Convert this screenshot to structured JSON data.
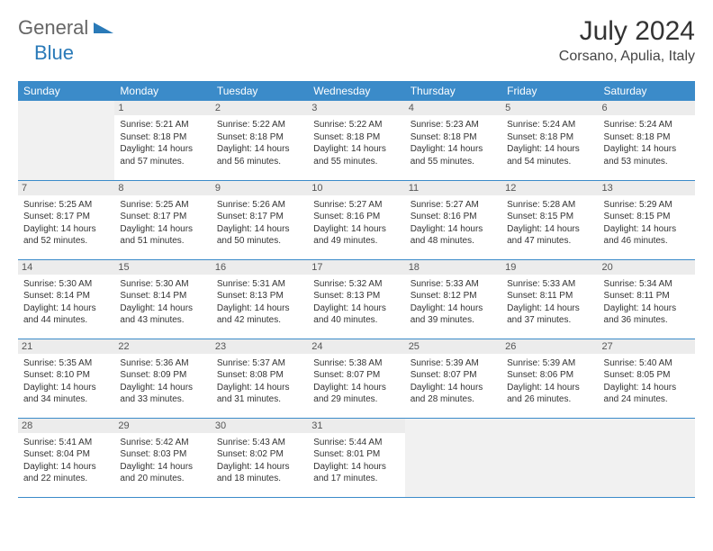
{
  "logo": {
    "text1": "General",
    "text2": "Blue"
  },
  "title": "July 2024",
  "location": "Corsano, Apulia, Italy",
  "weekdays": [
    "Sunday",
    "Monday",
    "Tuesday",
    "Wednesday",
    "Thursday",
    "Friday",
    "Saturday"
  ],
  "colors": {
    "header_bg": "#3b8bc9",
    "header_text": "#ffffff",
    "daynum_bg": "#ececec",
    "empty_bg": "#f1f1f1",
    "border": "#3b8bc9",
    "logo_blue": "#2a7ab8"
  },
  "grid_start_offset": 1,
  "days": [
    {
      "n": 1,
      "sunrise": "5:21 AM",
      "sunset": "8:18 PM",
      "daylight": "14 hours and 57 minutes."
    },
    {
      "n": 2,
      "sunrise": "5:22 AM",
      "sunset": "8:18 PM",
      "daylight": "14 hours and 56 minutes."
    },
    {
      "n": 3,
      "sunrise": "5:22 AM",
      "sunset": "8:18 PM",
      "daylight": "14 hours and 55 minutes."
    },
    {
      "n": 4,
      "sunrise": "5:23 AM",
      "sunset": "8:18 PM",
      "daylight": "14 hours and 55 minutes."
    },
    {
      "n": 5,
      "sunrise": "5:24 AM",
      "sunset": "8:18 PM",
      "daylight": "14 hours and 54 minutes."
    },
    {
      "n": 6,
      "sunrise": "5:24 AM",
      "sunset": "8:18 PM",
      "daylight": "14 hours and 53 minutes."
    },
    {
      "n": 7,
      "sunrise": "5:25 AM",
      "sunset": "8:17 PM",
      "daylight": "14 hours and 52 minutes."
    },
    {
      "n": 8,
      "sunrise": "5:25 AM",
      "sunset": "8:17 PM",
      "daylight": "14 hours and 51 minutes."
    },
    {
      "n": 9,
      "sunrise": "5:26 AM",
      "sunset": "8:17 PM",
      "daylight": "14 hours and 50 minutes."
    },
    {
      "n": 10,
      "sunrise": "5:27 AM",
      "sunset": "8:16 PM",
      "daylight": "14 hours and 49 minutes."
    },
    {
      "n": 11,
      "sunrise": "5:27 AM",
      "sunset": "8:16 PM",
      "daylight": "14 hours and 48 minutes."
    },
    {
      "n": 12,
      "sunrise": "5:28 AM",
      "sunset": "8:15 PM",
      "daylight": "14 hours and 47 minutes."
    },
    {
      "n": 13,
      "sunrise": "5:29 AM",
      "sunset": "8:15 PM",
      "daylight": "14 hours and 46 minutes."
    },
    {
      "n": 14,
      "sunrise": "5:30 AM",
      "sunset": "8:14 PM",
      "daylight": "14 hours and 44 minutes."
    },
    {
      "n": 15,
      "sunrise": "5:30 AM",
      "sunset": "8:14 PM",
      "daylight": "14 hours and 43 minutes."
    },
    {
      "n": 16,
      "sunrise": "5:31 AM",
      "sunset": "8:13 PM",
      "daylight": "14 hours and 42 minutes."
    },
    {
      "n": 17,
      "sunrise": "5:32 AM",
      "sunset": "8:13 PM",
      "daylight": "14 hours and 40 minutes."
    },
    {
      "n": 18,
      "sunrise": "5:33 AM",
      "sunset": "8:12 PM",
      "daylight": "14 hours and 39 minutes."
    },
    {
      "n": 19,
      "sunrise": "5:33 AM",
      "sunset": "8:11 PM",
      "daylight": "14 hours and 37 minutes."
    },
    {
      "n": 20,
      "sunrise": "5:34 AM",
      "sunset": "8:11 PM",
      "daylight": "14 hours and 36 minutes."
    },
    {
      "n": 21,
      "sunrise": "5:35 AM",
      "sunset": "8:10 PM",
      "daylight": "14 hours and 34 minutes."
    },
    {
      "n": 22,
      "sunrise": "5:36 AM",
      "sunset": "8:09 PM",
      "daylight": "14 hours and 33 minutes."
    },
    {
      "n": 23,
      "sunrise": "5:37 AM",
      "sunset": "8:08 PM",
      "daylight": "14 hours and 31 minutes."
    },
    {
      "n": 24,
      "sunrise": "5:38 AM",
      "sunset": "8:07 PM",
      "daylight": "14 hours and 29 minutes."
    },
    {
      "n": 25,
      "sunrise": "5:39 AM",
      "sunset": "8:07 PM",
      "daylight": "14 hours and 28 minutes."
    },
    {
      "n": 26,
      "sunrise": "5:39 AM",
      "sunset": "8:06 PM",
      "daylight": "14 hours and 26 minutes."
    },
    {
      "n": 27,
      "sunrise": "5:40 AM",
      "sunset": "8:05 PM",
      "daylight": "14 hours and 24 minutes."
    },
    {
      "n": 28,
      "sunrise": "5:41 AM",
      "sunset": "8:04 PM",
      "daylight": "14 hours and 22 minutes."
    },
    {
      "n": 29,
      "sunrise": "5:42 AM",
      "sunset": "8:03 PM",
      "daylight": "14 hours and 20 minutes."
    },
    {
      "n": 30,
      "sunrise": "5:43 AM",
      "sunset": "8:02 PM",
      "daylight": "14 hours and 18 minutes."
    },
    {
      "n": 31,
      "sunrise": "5:44 AM",
      "sunset": "8:01 PM",
      "daylight": "14 hours and 17 minutes."
    }
  ],
  "labels": {
    "sunrise": "Sunrise:",
    "sunset": "Sunset:",
    "daylight": "Daylight:"
  }
}
